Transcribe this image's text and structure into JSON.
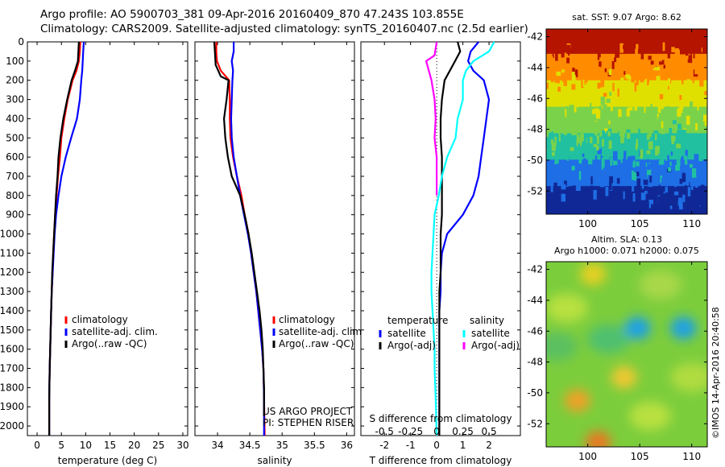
{
  "header": {
    "line1": "Argo profile: AO 5900703_381 09-Apr-2016 20160409_870 47.243S 103.855E",
    "line2": "Climatology: CARS2009. Satellite-adjusted climatology: synTS_20160407.nc (2.5d earlier)"
  },
  "credits": {
    "project": "US ARGO PROJECT",
    "pi": "PI: STEPHEN RISER",
    "imos": "©IMOS 14-Apr-2016 20:40:58"
  },
  "maps": {
    "sst_title": "sat. SST: 9.07 Argo: 8.62",
    "sla_title1": "Altim. SLA: 0.13",
    "sla_title2": "Argo h1000: 0.071 h2000: 0.075"
  },
  "colors": {
    "climatology": "#ff0000",
    "satellite": "#0000ff",
    "argo": "#000000",
    "t_diff_satellite": "#0000ff",
    "s_diff_satellite": "#00ffff",
    "s_diff_argo": "#ff00ff"
  },
  "chart_data": [
    {
      "type": "line",
      "xlabel": "temperature (deg C)",
      "ylabel": "",
      "xlim": [
        -2,
        31
      ],
      "ylim": [
        2050,
        0
      ],
      "xticks": [
        0,
        5,
        10,
        15,
        20,
        25,
        30
      ],
      "yticks": [
        0,
        100,
        200,
        300,
        400,
        500,
        600,
        700,
        800,
        900,
        1000,
        1100,
        1200,
        1300,
        1400,
        1500,
        1600,
        1700,
        1800,
        1900,
        2000
      ],
      "legend": [
        "climatology",
        "satellite-adj. clim.",
        "Argo(..raw -QC)"
      ],
      "series": [
        {
          "name": "climatology",
          "color": "#ff0000",
          "x": [
            8.9,
            8.8,
            8.6,
            8.1,
            7.3,
            6.3,
            5.6,
            5.0,
            4.7,
            4.3,
            4.0,
            3.7,
            3.5,
            3.3,
            3.2,
            3.0,
            2.9,
            2.8,
            2.7,
            2.6,
            2.5,
            2.5
          ],
          "y": [
            0,
            50,
            100,
            150,
            200,
            300,
            400,
            500,
            600,
            700,
            800,
            900,
            1000,
            1100,
            1200,
            1300,
            1400,
            1500,
            1600,
            1700,
            1850,
            2050
          ]
        },
        {
          "name": "satellite-adj. clim.",
          "color": "#0000ff",
          "x": [
            9.6,
            9.5,
            9.4,
            9.3,
            9.1,
            8.8,
            8.2,
            7.0,
            5.9,
            5.0,
            4.4,
            3.9,
            3.6,
            3.4,
            3.2,
            3.0,
            2.9,
            2.8,
            2.7,
            2.6,
            2.5,
            2.5
          ],
          "y": [
            0,
            50,
            100,
            150,
            200,
            300,
            400,
            500,
            600,
            700,
            800,
            900,
            1000,
            1100,
            1200,
            1300,
            1400,
            1500,
            1600,
            1700,
            1850,
            2050
          ]
        },
        {
          "name": "Argo(..raw -QC)",
          "color": "#000000",
          "x": [
            8.6,
            8.5,
            8.4,
            7.8,
            7.1,
            6.2,
            5.4,
            4.8,
            4.4,
            4.2,
            3.9,
            3.7,
            3.5,
            3.3,
            3.1,
            3.0,
            2.9,
            2.8,
            2.7,
            2.6,
            2.5,
            2.5
          ],
          "y": [
            0,
            50,
            100,
            150,
            200,
            300,
            400,
            500,
            600,
            700,
            800,
            900,
            1000,
            1100,
            1200,
            1300,
            1400,
            1500,
            1600,
            1700,
            1850,
            2050
          ]
        }
      ]
    },
    {
      "type": "line",
      "xlabel": "salinity",
      "ylabel": "",
      "xlim": [
        33.65,
        36.12
      ],
      "ylim": [
        2050,
        0
      ],
      "xticks": [
        34,
        34.5,
        35,
        35.5,
        36
      ],
      "legend": [
        "climatology",
        "satellite-adj. clim.",
        "Argo(..raw -QC)"
      ],
      "series": [
        {
          "name": "climatology",
          "color": "#ff0000",
          "x": [
            33.98,
            33.98,
            33.99,
            34.05,
            34.18,
            34.19,
            34.19,
            34.2,
            34.24,
            34.3,
            34.37,
            34.42,
            34.48,
            34.52,
            34.56,
            34.6,
            34.63,
            34.66,
            34.69,
            34.71,
            34.72,
            34.73
          ],
          "y": [
            0,
            50,
            100,
            150,
            200,
            300,
            400,
            500,
            600,
            700,
            800,
            900,
            1000,
            1100,
            1200,
            1300,
            1400,
            1500,
            1600,
            1700,
            1850,
            2050
          ]
        },
        {
          "name": "satellite-adj. clim.",
          "color": "#0000ff",
          "x": [
            34.25,
            34.25,
            34.22,
            34.24,
            34.23,
            34.22,
            34.21,
            34.22,
            34.25,
            34.3,
            34.35,
            34.41,
            34.47,
            34.52,
            34.56,
            34.6,
            34.63,
            34.66,
            34.69,
            34.71,
            34.72,
            34.72
          ],
          "y": [
            0,
            50,
            100,
            150,
            200,
            300,
            400,
            500,
            600,
            700,
            800,
            900,
            1000,
            1100,
            1200,
            1300,
            1400,
            1500,
            1600,
            1700,
            1850,
            2050
          ]
        },
        {
          "name": "Argo(..raw -QC)",
          "color": "#000000",
          "x": [
            33.95,
            33.96,
            33.97,
            34.05,
            34.17,
            34.14,
            34.1,
            34.12,
            34.16,
            34.22,
            34.35,
            34.42,
            34.48,
            34.53,
            34.57,
            34.61,
            34.65,
            34.68,
            34.7,
            34.71,
            34.72,
            34.72
          ],
          "y": [
            0,
            60,
            120,
            180,
            200,
            300,
            400,
            500,
            600,
            700,
            800,
            900,
            1000,
            1100,
            1200,
            1300,
            1400,
            1500,
            1600,
            1700,
            1800,
            1950
          ]
        }
      ]
    },
    {
      "type": "line",
      "xlabel": "T difference from climatology",
      "top_xlabel": "S difference from climatology",
      "ylabel": "",
      "xlim": [
        -2.9,
        3.2
      ],
      "ylim": [
        2050,
        0
      ],
      "xticks": [
        -2,
        -1,
        0,
        1,
        2
      ],
      "top_xticks": [
        -0.5,
        -0.25,
        0,
        0.25,
        0.5
      ],
      "legend_groups": [
        "temperature",
        "salinity"
      ],
      "legend": [
        "satellite",
        "Argo(-adj)",
        "satellite",
        "Argo(-adj)"
      ],
      "series": [
        {
          "name": "satellite",
          "group": "temperature",
          "color": "#0000ff",
          "x": [
            1.6,
            1.3,
            1.2,
            1.4,
            1.8,
            2.0,
            1.9,
            1.8,
            1.7,
            1.6,
            1.4,
            1.0,
            0.4,
            0.2,
            0.15,
            0.15,
            0.1,
            0.1,
            0.1,
            0.1,
            0.1,
            0.1
          ],
          "y": [
            0,
            50,
            100,
            150,
            200,
            300,
            400,
            500,
            600,
            700,
            800,
            900,
            1000,
            1100,
            1200,
            1300,
            1400,
            1500,
            1600,
            1700,
            1850,
            2050
          ]
        },
        {
          "name": "Argo(-adj)",
          "group": "temperature",
          "color": "#000000",
          "x": [
            0.8,
            0.9,
            0.7,
            0.5,
            0.3,
            0.2,
            0.15,
            0.15,
            0.2,
            0.2,
            0.2,
            0.2,
            0.15,
            0.15,
            0.15,
            0.1,
            0.1,
            0.1,
            0.1,
            0.1,
            0.1,
            0.1
          ],
          "y": [
            0,
            50,
            100,
            150,
            200,
            300,
            400,
            500,
            600,
            700,
            800,
            900,
            1000,
            1100,
            1200,
            1300,
            1400,
            1500,
            1600,
            1700,
            1850,
            2050
          ]
        },
        {
          "name": "satellite",
          "group": "salinity",
          "color": "#00ffff",
          "x": [
            0.55,
            0.5,
            0.35,
            0.28,
            0.25,
            0.25,
            0.2,
            0.18,
            0.1,
            0.05,
            0.02,
            -0.02,
            -0.03,
            -0.04,
            -0.05,
            -0.05,
            -0.04,
            -0.03,
            -0.02,
            -0.02,
            -0.01,
            0.0
          ],
          "y": [
            0,
            50,
            100,
            150,
            200,
            300,
            400,
            500,
            600,
            700,
            800,
            900,
            1000,
            1100,
            1200,
            1300,
            1400,
            1500,
            1600,
            1700,
            1850,
            2050
          ]
        },
        {
          "name": "Argo(-adj)",
          "group": "salinity",
          "color": "#ff00ff",
          "x": [
            0.0,
            -0.02,
            -0.1,
            -0.05,
            -0.02,
            -0.01,
            -0.02,
            0.0,
            0.0
          ],
          "y": [
            0,
            70,
            100,
            200,
            300,
            400,
            500,
            600,
            800
          ]
        }
      ]
    },
    {
      "type": "heatmap",
      "title": "sat. SST: 9.07 Argo: 8.62",
      "xlim": [
        96,
        111.5
      ],
      "ylim": [
        -53.5,
        -41.5
      ],
      "xticks": [
        100,
        105,
        110
      ],
      "yticks": [
        -42,
        -44,
        -46,
        -48,
        -50,
        -52
      ],
      "colors_top_to_bottom": [
        "#b41400",
        "#ff8c00",
        "#e0e000",
        "#7ad24a",
        "#20c0a0",
        "#1e6ee6",
        "#102896"
      ]
    },
    {
      "type": "heatmap",
      "title": "Altim. SLA: 0.13 / Argo h1000: 0.071 h2000: 0.075",
      "xlim": [
        96,
        111.5
      ],
      "ylim": [
        -53.5,
        -41.5
      ],
      "xticks": [
        100,
        105,
        110
      ],
      "yticks": [
        -42,
        -44,
        -46,
        -48,
        -50,
        -52
      ],
      "background": "#7ccd3c",
      "blobs": [
        {
          "lon": 104.8,
          "lat": -45.8,
          "color": "#1ea0e6"
        },
        {
          "lon": 109.2,
          "lat": -45.8,
          "color": "#1ea0e6"
        },
        {
          "lon": 100.5,
          "lat": -42.3,
          "color": "#e8d020"
        },
        {
          "lon": 99.0,
          "lat": -50.5,
          "color": "#f0a028"
        },
        {
          "lon": 103.5,
          "lat": -49.0,
          "color": "#f0c830"
        },
        {
          "lon": 101.0,
          "lat": -53.2,
          "color": "#e87820"
        }
      ]
    }
  ]
}
